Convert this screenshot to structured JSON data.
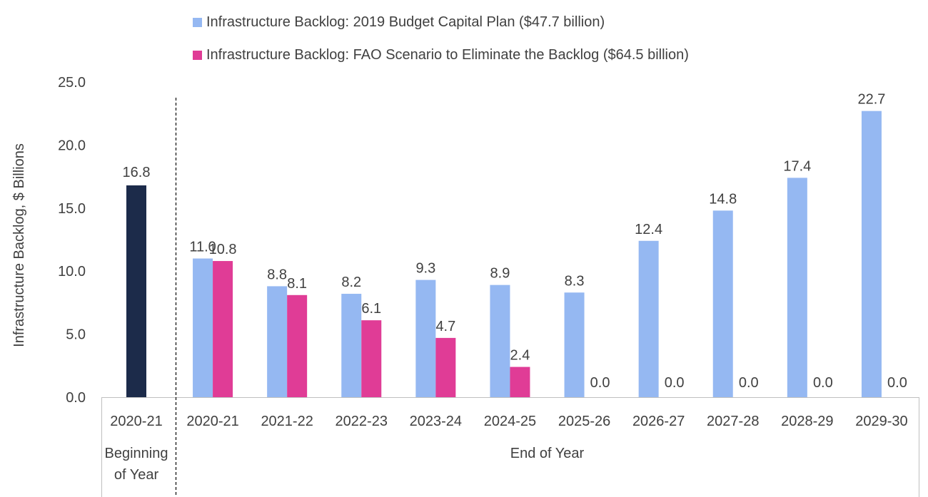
{
  "chart_data": {
    "type": "bar",
    "ylabel": "Infrastructure Backlog, $ Billions",
    "ylim": [
      0,
      25
    ],
    "yticks": [
      "0.0",
      "5.0",
      "10.0",
      "15.0",
      "20.0",
      "25.0"
    ],
    "ytick_values": [
      0,
      5,
      10,
      15,
      20,
      25
    ],
    "beginning": {
      "category": "2020-21",
      "value": 16.8,
      "label": "16.8",
      "group_label": "Beginning of Year",
      "group_label_lines": [
        "Beginning",
        "of Year"
      ],
      "color": "#1C2B4A"
    },
    "end_group_label": "End of Year",
    "categories": [
      "2020-21",
      "2021-22",
      "2022-23",
      "2023-24",
      "2024-25",
      "2025-26",
      "2026-27",
      "2027-28",
      "2028-29",
      "2029-30"
    ],
    "series": [
      {
        "name": "Infrastructure Backlog: 2019 Budget Capital Plan ($47.7 billion)",
        "color": "#95B8F2",
        "values": [
          11.0,
          8.8,
          8.2,
          9.3,
          8.9,
          8.3,
          12.4,
          14.8,
          17.4,
          22.7
        ],
        "labels": [
          "11.0",
          "8.8",
          "8.2",
          "9.3",
          "8.9",
          "8.3",
          "12.4",
          "14.8",
          "17.4",
          "22.7"
        ]
      },
      {
        "name": "Infrastructure Backlog: FAO Scenario to Eliminate the Backlog ($64.5 billion)",
        "color": "#E03C96",
        "values": [
          10.8,
          8.1,
          6.1,
          4.7,
          2.4,
          0.0,
          0.0,
          0.0,
          0.0,
          0.0
        ],
        "labels": [
          "10.8",
          "8.1",
          "6.1",
          "4.7",
          "2.4",
          "0.0",
          "0.0",
          "0.0",
          "0.0",
          "0.0"
        ]
      }
    ],
    "legend_position": "top"
  }
}
